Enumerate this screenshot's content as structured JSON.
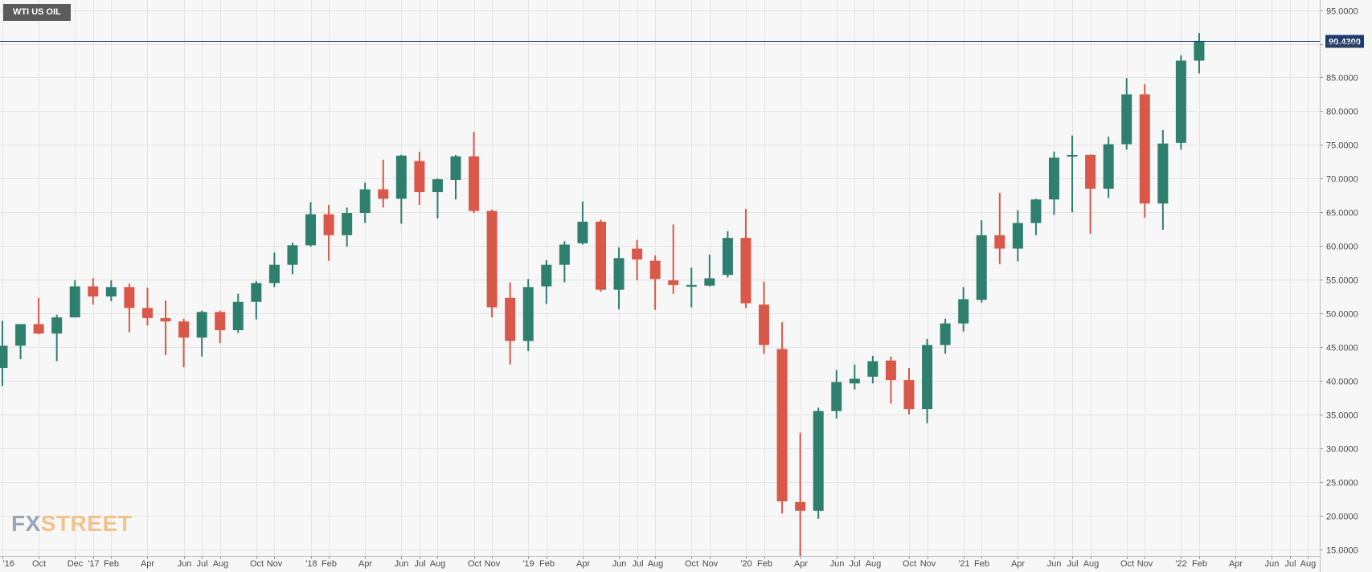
{
  "title": "WTI US OIL",
  "logo": {
    "prefix": "FX",
    "suffix": "STREET"
  },
  "colors": {
    "up": "#2f7f6f",
    "down": "#d9584a",
    "price_line": "#1e3a6e",
    "grid": "#e4e4e4",
    "background": "#f7f7f7"
  },
  "chart_data": {
    "type": "candlestick",
    "interval": "monthly",
    "grid": true,
    "ylim": [
      14.0,
      96.5
    ],
    "y_ticks": [
      "95.0000",
      "90.0000",
      "85.0000",
      "80.0000",
      "75.0000",
      "70.0000",
      "65.0000",
      "60.0000",
      "55.0000",
      "50.0000",
      "45.0000",
      "40.0000",
      "35.0000",
      "30.0000",
      "25.0000",
      "20.0000",
      "15.0000"
    ],
    "current_price": "90.4300",
    "x_tick_labels": [
      {
        "label": "'16",
        "index": 0
      },
      {
        "label": "Oct",
        "index": 2
      },
      {
        "label": "Dec",
        "index": 4
      },
      {
        "label": "'17",
        "index": 5
      },
      {
        "label": "Feb",
        "index": 6
      },
      {
        "label": "Apr",
        "index": 8
      },
      {
        "label": "Jun",
        "index": 10
      },
      {
        "label": "Jul",
        "index": 11
      },
      {
        "label": "Aug",
        "index": 12
      },
      {
        "label": "Oct",
        "index": 14
      },
      {
        "label": "Nov",
        "index": 15
      },
      {
        "label": "'18",
        "index": 17
      },
      {
        "label": "Feb",
        "index": 18
      },
      {
        "label": "Apr",
        "index": 20
      },
      {
        "label": "Jun",
        "index": 22
      },
      {
        "label": "Jul",
        "index": 23
      },
      {
        "label": "Aug",
        "index": 24
      },
      {
        "label": "Oct",
        "index": 26
      },
      {
        "label": "Nov",
        "index": 27
      },
      {
        "label": "'19",
        "index": 29
      },
      {
        "label": "Feb",
        "index": 30
      },
      {
        "label": "Apr",
        "index": 32
      },
      {
        "label": "Jun",
        "index": 34
      },
      {
        "label": "Jul",
        "index": 35
      },
      {
        "label": "Aug",
        "index": 36
      },
      {
        "label": "Oct",
        "index": 38
      },
      {
        "label": "Nov",
        "index": 39
      },
      {
        "label": "'20",
        "index": 41
      },
      {
        "label": "Feb",
        "index": 42
      },
      {
        "label": "Apr",
        "index": 44
      },
      {
        "label": "Jun",
        "index": 46
      },
      {
        "label": "Jul",
        "index": 47
      },
      {
        "label": "Aug",
        "index": 48
      },
      {
        "label": "Oct",
        "index": 50
      },
      {
        "label": "Nov",
        "index": 51
      },
      {
        "label": "'21",
        "index": 53
      },
      {
        "label": "Feb",
        "index": 54
      },
      {
        "label": "Apr",
        "index": 56
      },
      {
        "label": "Jun",
        "index": 58
      },
      {
        "label": "Jul",
        "index": 59
      },
      {
        "label": "Aug",
        "index": 60
      },
      {
        "label": "Oct",
        "index": 62
      },
      {
        "label": "Nov",
        "index": 63
      },
      {
        "label": "'22",
        "index": 65
      },
      {
        "label": "Feb",
        "index": 66
      },
      {
        "label": "Apr",
        "index": 68
      },
      {
        "label": "Jun",
        "index": 70
      },
      {
        "label": "Jul",
        "index": 71
      },
      {
        "label": "Aug",
        "index": 72
      }
    ],
    "candles": [
      {
        "o": 41.9,
        "h": 48.9,
        "l": 39.2,
        "c": 45.2
      },
      {
        "o": 45.2,
        "h": 48.4,
        "l": 43.2,
        "c": 48.4
      },
      {
        "o": 48.4,
        "h": 52.3,
        "l": 46.9,
        "c": 47.0
      },
      {
        "o": 47.0,
        "h": 49.8,
        "l": 42.9,
        "c": 49.4
      },
      {
        "o": 49.4,
        "h": 54.9,
        "l": 49.4,
        "c": 54.0
      },
      {
        "o": 54.0,
        "h": 55.2,
        "l": 51.3,
        "c": 52.5
      },
      {
        "o": 52.5,
        "h": 54.9,
        "l": 51.8,
        "c": 53.9
      },
      {
        "o": 53.9,
        "h": 54.4,
        "l": 47.2,
        "c": 50.8
      },
      {
        "o": 50.8,
        "h": 53.8,
        "l": 48.2,
        "c": 49.3
      },
      {
        "o": 49.3,
        "h": 51.9,
        "l": 43.8,
        "c": 48.8
      },
      {
        "o": 48.8,
        "h": 49.2,
        "l": 42.0,
        "c": 46.4
      },
      {
        "o": 46.4,
        "h": 50.4,
        "l": 43.6,
        "c": 50.2
      },
      {
        "o": 50.2,
        "h": 50.4,
        "l": 45.6,
        "c": 47.5
      },
      {
        "o": 47.5,
        "h": 52.9,
        "l": 47.1,
        "c": 51.7
      },
      {
        "o": 51.7,
        "h": 54.8,
        "l": 49.1,
        "c": 54.5
      },
      {
        "o": 54.5,
        "h": 59.0,
        "l": 53.9,
        "c": 57.2
      },
      {
        "o": 57.2,
        "h": 60.5,
        "l": 55.8,
        "c": 60.1
      },
      {
        "o": 60.1,
        "h": 66.5,
        "l": 59.9,
        "c": 64.7
      },
      {
        "o": 64.7,
        "h": 66.1,
        "l": 57.8,
        "c": 61.6
      },
      {
        "o": 61.6,
        "h": 65.7,
        "l": 59.9,
        "c": 64.9
      },
      {
        "o": 64.9,
        "h": 69.4,
        "l": 63.4,
        "c": 68.4
      },
      {
        "o": 68.4,
        "h": 72.8,
        "l": 65.7,
        "c": 67.0
      },
      {
        "o": 67.0,
        "h": 73.5,
        "l": 63.3,
        "c": 73.4
      },
      {
        "o": 72.6,
        "h": 74.0,
        "l": 66.1,
        "c": 68.0
      },
      {
        "o": 68.0,
        "h": 70.0,
        "l": 64.1,
        "c": 69.9
      },
      {
        "o": 69.8,
        "h": 73.5,
        "l": 66.9,
        "c": 73.3
      },
      {
        "o": 73.3,
        "h": 76.9,
        "l": 64.9,
        "c": 65.2
      },
      {
        "o": 65.2,
        "h": 65.4,
        "l": 49.4,
        "c": 50.9
      },
      {
        "o": 52.3,
        "h": 54.6,
        "l": 42.4,
        "c": 45.9
      },
      {
        "o": 45.9,
        "h": 55.1,
        "l": 44.4,
        "c": 53.9
      },
      {
        "o": 54.0,
        "h": 57.9,
        "l": 51.4,
        "c": 57.2
      },
      {
        "o": 57.2,
        "h": 60.7,
        "l": 54.6,
        "c": 60.2
      },
      {
        "o": 60.4,
        "h": 66.6,
        "l": 60.2,
        "c": 63.6
      },
      {
        "o": 63.6,
        "h": 63.9,
        "l": 53.2,
        "c": 53.5
      },
      {
        "o": 53.5,
        "h": 59.8,
        "l": 50.6,
        "c": 58.2
      },
      {
        "o": 59.6,
        "h": 60.9,
        "l": 54.9,
        "c": 58.0
      },
      {
        "o": 57.8,
        "h": 58.6,
        "l": 50.5,
        "c": 55.1
      },
      {
        "o": 54.9,
        "h": 63.2,
        "l": 52.9,
        "c": 54.2
      },
      {
        "o": 54.2,
        "h": 56.8,
        "l": 50.9,
        "c": 54.2
      },
      {
        "o": 54.1,
        "h": 58.7,
        "l": 54.0,
        "c": 55.2
      },
      {
        "o": 55.7,
        "h": 62.2,
        "l": 55.3,
        "c": 61.2
      },
      {
        "o": 61.2,
        "h": 65.5,
        "l": 50.8,
        "c": 51.5
      },
      {
        "o": 51.3,
        "h": 54.7,
        "l": 44.0,
        "c": 45.3
      },
      {
        "o": 44.7,
        "h": 48.7,
        "l": 20.3,
        "c": 22.1
      },
      {
        "o": 22.0,
        "h": 32.3,
        "l": 14.0,
        "c": 20.7
      },
      {
        "o": 20.7,
        "h": 36.0,
        "l": 19.5,
        "c": 35.5
      },
      {
        "o": 35.5,
        "h": 41.6,
        "l": 34.4,
        "c": 39.8
      },
      {
        "o": 39.6,
        "h": 42.4,
        "l": 38.7,
        "c": 40.3
      },
      {
        "o": 40.6,
        "h": 43.7,
        "l": 39.6,
        "c": 42.9
      },
      {
        "o": 43.0,
        "h": 43.6,
        "l": 36.6,
        "c": 40.1
      },
      {
        "o": 40.1,
        "h": 41.9,
        "l": 35.0,
        "c": 35.8
      },
      {
        "o": 35.8,
        "h": 46.2,
        "l": 33.7,
        "c": 45.3
      },
      {
        "o": 45.3,
        "h": 49.2,
        "l": 44.0,
        "c": 48.5
      },
      {
        "o": 48.5,
        "h": 53.9,
        "l": 47.3,
        "c": 52.1
      },
      {
        "o": 52.0,
        "h": 63.8,
        "l": 51.6,
        "c": 61.6
      },
      {
        "o": 61.6,
        "h": 67.9,
        "l": 57.3,
        "c": 59.6
      },
      {
        "o": 59.6,
        "h": 65.3,
        "l": 57.7,
        "c": 63.4
      },
      {
        "o": 63.4,
        "h": 67.0,
        "l": 61.6,
        "c": 66.9
      },
      {
        "o": 66.9,
        "h": 74.0,
        "l": 64.6,
        "c": 73.1
      },
      {
        "o": 73.4,
        "h": 76.4,
        "l": 65.0,
        "c": 73.5
      },
      {
        "o": 73.5,
        "h": 73.6,
        "l": 61.8,
        "c": 68.5
      },
      {
        "o": 68.5,
        "h": 76.2,
        "l": 67.1,
        "c": 75.1
      },
      {
        "o": 75.1,
        "h": 84.9,
        "l": 74.3,
        "c": 82.5
      },
      {
        "o": 82.5,
        "h": 84.0,
        "l": 64.2,
        "c": 66.3
      },
      {
        "o": 66.3,
        "h": 77.2,
        "l": 62.4,
        "c": 75.2
      },
      {
        "o": 75.3,
        "h": 88.3,
        "l": 74.3,
        "c": 87.5
      },
      {
        "o": 87.5,
        "h": 91.6,
        "l": 85.6,
        "c": 90.43
      }
    ]
  }
}
